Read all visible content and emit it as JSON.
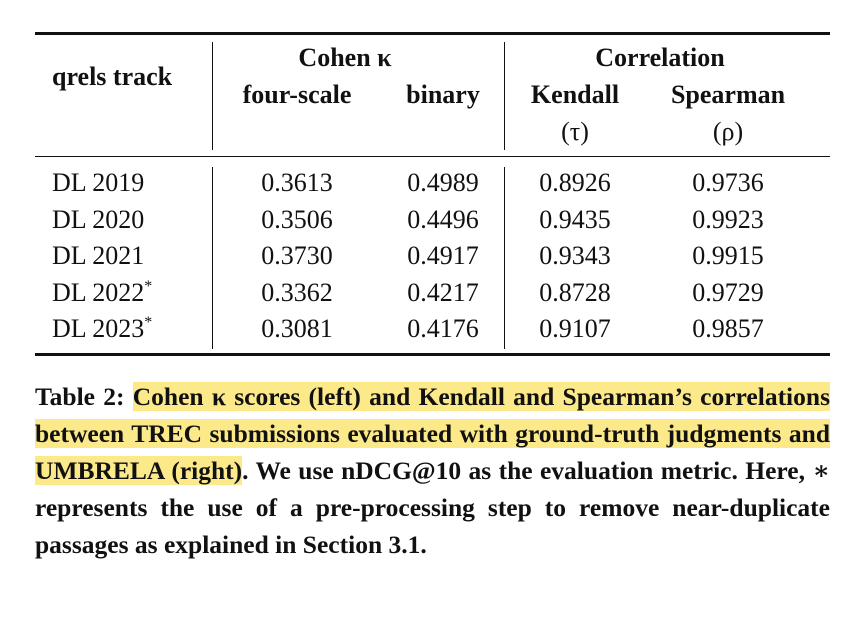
{
  "table": {
    "row_header": "qrels track",
    "groups": [
      "Cohen κ",
      "Correlation"
    ],
    "columns": [
      "four-scale",
      "binary",
      "Kendall",
      "Spearman"
    ],
    "column_symbols": [
      "(τ)",
      "(ρ)"
    ],
    "rows": [
      {
        "label": "DL 2019",
        "cells": [
          "0.3613",
          "0.4989",
          "0.8926",
          "0.9736"
        ]
      },
      {
        "label": "DL 2020",
        "cells": [
          "0.3506",
          "0.4496",
          "0.9435",
          "0.9923"
        ]
      },
      {
        "label": "DL 2021",
        "cells": [
          "0.3730",
          "0.4917",
          "0.9343",
          "0.9915"
        ]
      },
      {
        "label": "DL 2022",
        "marker": "*",
        "cells": [
          "0.3362",
          "0.4217",
          "0.8728",
          "0.9729"
        ]
      },
      {
        "label": "DL 2023",
        "marker": "*",
        "cells": [
          "0.3081",
          "0.4176",
          "0.9107",
          "0.9857"
        ]
      }
    ]
  },
  "caption": {
    "label": "Table 2:",
    "highlighted": "Cohen κ scores (left) and Kendall and Spearman’s correlations between TREC submissions evaluated with ground-truth judgments and UMBRELA (right)",
    "rest": ". We use nDCG@10 as the evaluation metric. Here, ∗ represents the use of a pre-processing step to remove near-duplicate passages as explained in Section 3.1."
  }
}
